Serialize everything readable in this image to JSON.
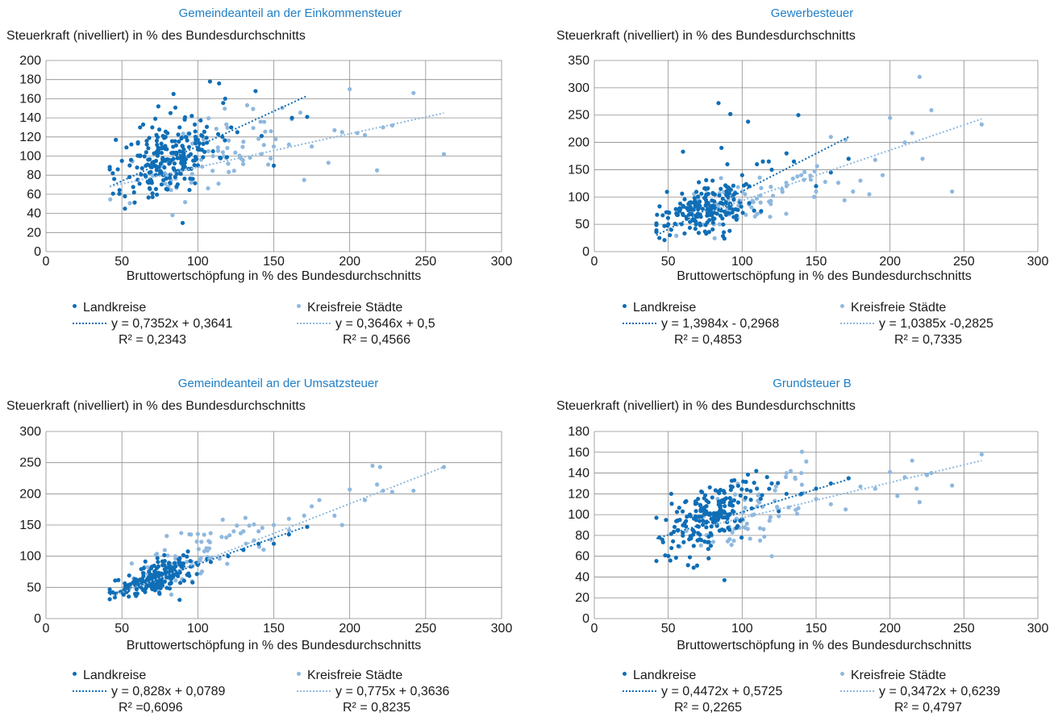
{
  "colors": {
    "landkreise": "#0f6eb6",
    "staedte": "#8fb8de",
    "grid": "#8c8c8c",
    "title": "#1f7fc7"
  },
  "chart_data": [
    {
      "type": "scatter",
      "title": "Gemeindeanteil an der Einkommensteuer",
      "ylabel": "Steuerkraft (nivelliert) in % des Bundesdurchschnitts",
      "xlabel": "Bruttowertschöpfung in % des Bundesdurchschnitts",
      "xlim": [
        0,
        300
      ],
      "ylim": [
        0,
        200
      ],
      "xticks": [
        "0",
        "50",
        "100",
        "150",
        "200",
        "250",
        "300"
      ],
      "yticks": [
        "0",
        "20",
        "40",
        "60",
        "80",
        "100",
        "120",
        "140",
        "160",
        "180",
        "200"
      ],
      "grid": true,
      "series": [
        {
          "name": "Landkreise",
          "trend_x": [
            42,
            172
          ],
          "trend_y": [
            68,
            163
          ],
          "points": [
            [
              42,
              86
            ],
            [
              44,
              82
            ],
            [
              46,
              117
            ],
            [
              50,
              95
            ],
            [
              52,
              45
            ],
            [
              53,
              109
            ],
            [
              55,
              78
            ],
            [
              56,
              96
            ],
            [
              58,
              62
            ],
            [
              60,
              88
            ],
            [
              62,
              100
            ],
            [
              64,
              133
            ],
            [
              66,
              104
            ],
            [
              68,
              119
            ],
            [
              70,
              93
            ],
            [
              72,
              139
            ],
            [
              74,
              106
            ],
            [
              76,
              113
            ],
            [
              78,
              88
            ],
            [
              80,
              124
            ],
            [
              82,
              145
            ],
            [
              84,
              97
            ],
            [
              86,
              102
            ],
            [
              88,
              130
            ],
            [
              90,
              110
            ],
            [
              92,
              120
            ],
            [
              94,
              100
            ],
            [
              96,
              142
            ],
            [
              98,
              133
            ],
            [
              100,
              107
            ],
            [
              103,
              121
            ],
            [
              106,
              114
            ],
            [
              108,
              178
            ],
            [
              110,
              105
            ],
            [
              114,
              176
            ],
            [
              118,
              160
            ],
            [
              122,
              130
            ],
            [
              126,
              125
            ],
            [
              138,
              168
            ],
            [
              142,
              121
            ],
            [
              150,
              90
            ],
            [
              162,
              140
            ],
            [
              172,
              141
            ],
            [
              90,
              30
            ],
            [
              80,
              65
            ],
            [
              70,
              130
            ],
            [
              62,
              130
            ],
            [
              84,
              165
            ],
            [
              74,
              152
            ]
          ],
          "cloud": {
            "mx": 82,
            "my": 97,
            "sx": 15,
            "sy": 19,
            "n": 190,
            "seed": 11
          }
        },
        {
          "name": "Kreisfreie Städte",
          "trend_x": [
            42,
            262
          ],
          "trend_y": [
            68,
            145
          ],
          "points": [
            [
              70,
              80
            ],
            [
              80,
              95
            ],
            [
              100,
              110
            ],
            [
              110,
              100
            ],
            [
              120,
              92
            ],
            [
              130,
              115
            ],
            [
              140,
              118
            ],
            [
              150,
              110
            ],
            [
              160,
              112
            ],
            [
              170,
              75
            ],
            [
              175,
              110
            ],
            [
              186,
              93
            ],
            [
              190,
              127
            ],
            [
              195,
              125
            ],
            [
              200,
              170
            ],
            [
              205,
              124
            ],
            [
              210,
              122
            ],
            [
              218,
              85
            ],
            [
              222,
              130
            ],
            [
              228,
              132
            ],
            [
              242,
              166
            ],
            [
              262,
              102
            ]
          ],
          "cloud": {
            "mx": 110,
            "my": 100,
            "sx": 25,
            "sy": 18,
            "n": 70,
            "seed": 23
          }
        }
      ],
      "legend": [
        {
          "label": "Landkreise",
          "eq": "y = 0,7352x + 0,3641",
          "r2": "R² = 0,2343"
        },
        {
          "label": "Kreisfreie Städte",
          "eq": "y = 0,3646x + 0,5",
          "r2": "R² = 0,4566"
        }
      ]
    },
    {
      "type": "scatter",
      "title": "Gewerbesteuer",
      "ylabel": "Steuerkraft (nivelliert) in % des Bundesdurchschnitts",
      "xlabel": "Bruttowertschöpfung in % des Bundesdurchschnitts",
      "xlim": [
        0,
        300
      ],
      "ylim": [
        0,
        350
      ],
      "xticks": [
        "0",
        "50",
        "100",
        "150",
        "200",
        "250",
        "300"
      ],
      "yticks": [
        "0",
        "50",
        "100",
        "150",
        "200",
        "250",
        "300",
        "350"
      ],
      "grid": true,
      "series": [
        {
          "name": "Landkreise",
          "trend_x": [
            42,
            172
          ],
          "trend_y": [
            30,
            210
          ],
          "points": [
            [
              42,
              36
            ],
            [
              44,
              25
            ],
            [
              50,
              50
            ],
            [
              52,
              40
            ],
            [
              60,
              183
            ],
            [
              80,
              130
            ],
            [
              84,
              272
            ],
            [
              86,
              190
            ],
            [
              88,
              24
            ],
            [
              90,
              160
            ],
            [
              92,
              252
            ],
            [
              100,
              140
            ],
            [
              104,
              238
            ],
            [
              110,
              160
            ],
            [
              114,
              165
            ],
            [
              118,
              165
            ],
            [
              120,
              150
            ],
            [
              130,
              180
            ],
            [
              135,
              165
            ],
            [
              138,
              250
            ],
            [
              150,
              120
            ],
            [
              160,
              145
            ],
            [
              172,
              170
            ]
          ],
          "cloud": {
            "mx": 78,
            "my": 80,
            "sx": 14,
            "sy": 22,
            "n": 190,
            "seed": 5
          }
        },
        {
          "name": "Kreisfreie Städte",
          "trend_x": [
            80,
            262
          ],
          "trend_y": [
            75,
            243
          ],
          "points": [
            [
              100,
              110
            ],
            [
              130,
              120
            ],
            [
              140,
              140
            ],
            [
              150,
              110
            ],
            [
              160,
              210
            ],
            [
              170,
              205
            ],
            [
              175,
              110
            ],
            [
              180,
              130
            ],
            [
              186,
              105
            ],
            [
              190,
              168
            ],
            [
              195,
              140
            ],
            [
              200,
              245
            ],
            [
              210,
              200
            ],
            [
              215,
              217
            ],
            [
              220,
              320
            ],
            [
              222,
              170
            ],
            [
              228,
              259
            ],
            [
              242,
              110
            ],
            [
              262,
              233
            ]
          ],
          "cloud": {
            "mx": 105,
            "my": 90,
            "sx": 22,
            "sy": 22,
            "n": 70,
            "seed": 8
          }
        }
      ],
      "legend": [
        {
          "label": "Landkreise",
          "eq": "y = 1,3984x - 0,2968",
          "r2": "R² = 0,4853"
        },
        {
          "label": "Kreisfreie Städte",
          "eq": "y = 1,0385x -0,2825",
          "r2": "R² = 0,7335"
        }
      ]
    },
    {
      "type": "scatter",
      "title": "Gemeindeanteil an der Umsatzsteuer",
      "ylabel": "Steuerkraft (nivelliert) in % des Bundesdurchschnitts",
      "xlabel": "Bruttowertschöpfung in % des Bundesdurchschnitts",
      "xlim": [
        0,
        300
      ],
      "ylim": [
        0,
        300
      ],
      "xticks": [
        "0",
        "50",
        "100",
        "150",
        "200",
        "250",
        "300"
      ],
      "yticks": [
        "0",
        "50",
        "100",
        "150",
        "200",
        "250",
        "300"
      ],
      "grid": true,
      "series": [
        {
          "name": "Landkreise",
          "trend_x": [
            42,
            172
          ],
          "trend_y": [
            38,
            148
          ],
          "points": [
            [
              42,
              42
            ],
            [
              44,
              42
            ],
            [
              46,
              40
            ],
            [
              88,
              30
            ],
            [
              120,
              100
            ],
            [
              130,
              110
            ],
            [
              140,
              120
            ],
            [
              150,
              120
            ],
            [
              160,
              135
            ],
            [
              172,
              147
            ]
          ],
          "cloud": {
            "mx": 75,
            "my": 66,
            "sx": 13,
            "sy": 11,
            "n": 200,
            "seed": 3,
            "trend": 0.85
          }
        },
        {
          "name": "Kreisfreie Städte",
          "trend_x": [
            44,
            262
          ],
          "trend_y": [
            36,
            243
          ],
          "points": [
            [
              130,
              140
            ],
            [
              140,
              140
            ],
            [
              150,
              150
            ],
            [
              160,
              160
            ],
            [
              170,
              165
            ],
            [
              175,
              180
            ],
            [
              180,
              190
            ],
            [
              190,
              165
            ],
            [
              195,
              150
            ],
            [
              200,
              207
            ],
            [
              210,
              190
            ],
            [
              215,
              245
            ],
            [
              218,
              215
            ],
            [
              220,
              243
            ],
            [
              222,
              205
            ],
            [
              228,
              203
            ],
            [
              242,
              205
            ],
            [
              262,
              243
            ]
          ],
          "cloud": {
            "mx": 100,
            "my": 105,
            "sx": 22,
            "sy": 22,
            "n": 70,
            "seed": 19,
            "trend": 0.8
          }
        }
      ],
      "legend": [
        {
          "label": "Landkreise",
          "eq": "y = 0,828x + 0,0789",
          "r2": "R² =0,6096"
        },
        {
          "label": "Kreisfreie Städte",
          "eq": "y = 0,775x + 0,3636",
          "r2": "R² = 0,8235"
        }
      ]
    },
    {
      "type": "scatter",
      "title": "Grundsteuer B",
      "ylabel": "Steuerkraft (nivelliert) in % des Bundesdurchschnitts",
      "xlabel": "Bruttowertschöpfung in % des Bundesdurchschnitts",
      "xlim": [
        0,
        300
      ],
      "ylim": [
        0,
        180
      ],
      "xticks": [
        "0",
        "50",
        "100",
        "150",
        "200",
        "250",
        "300"
      ],
      "yticks": [
        "0",
        "20",
        "40",
        "60",
        "80",
        "100",
        "120",
        "140",
        "160",
        "180"
      ],
      "grid": true,
      "series": [
        {
          "name": "Landkreise",
          "trend_x": [
            42,
            172
          ],
          "trend_y": [
            77,
            134
          ],
          "points": [
            [
              42,
              97
            ],
            [
              44,
              78
            ],
            [
              46,
              76
            ],
            [
              52,
              120
            ],
            [
              88,
              37
            ],
            [
              110,
              125
            ],
            [
              120,
              130
            ],
            [
              130,
              120
            ],
            [
              140,
              120
            ],
            [
              150,
              125
            ],
            [
              160,
              130
            ],
            [
              172,
              135
            ]
          ],
          "cloud": {
            "mx": 78,
            "my": 98,
            "sx": 15,
            "sy": 15,
            "n": 200,
            "seed": 7
          }
        },
        {
          "name": "Kreisfreie Städte",
          "trend_x": [
            80,
            262
          ],
          "trend_y": [
            90,
            152
          ],
          "points": [
            [
              120,
              60
            ],
            [
              130,
              140
            ],
            [
              140,
              140
            ],
            [
              150,
              115
            ],
            [
              160,
              110
            ],
            [
              170,
              105
            ],
            [
              180,
              127
            ],
            [
              190,
              125
            ],
            [
              200,
              141
            ],
            [
              205,
              118
            ],
            [
              210,
              136
            ],
            [
              215,
              152
            ],
            [
              218,
              125
            ],
            [
              220,
              112
            ],
            [
              225,
              138
            ],
            [
              228,
              140
            ],
            [
              242,
              128
            ],
            [
              262,
              158
            ]
          ],
          "cloud": {
            "mx": 105,
            "my": 100,
            "sx": 22,
            "sy": 16,
            "n": 70,
            "seed": 31
          }
        }
      ],
      "legend": [
        {
          "label": "Landkreise",
          "eq": "y = 0,4472x + 0,5725",
          "r2": "R² = 0,2265"
        },
        {
          "label": "Kreisfreie Städte",
          "eq": "y = 0,3472x + 0,6239",
          "r2": "R² = 0,4797"
        }
      ]
    }
  ]
}
